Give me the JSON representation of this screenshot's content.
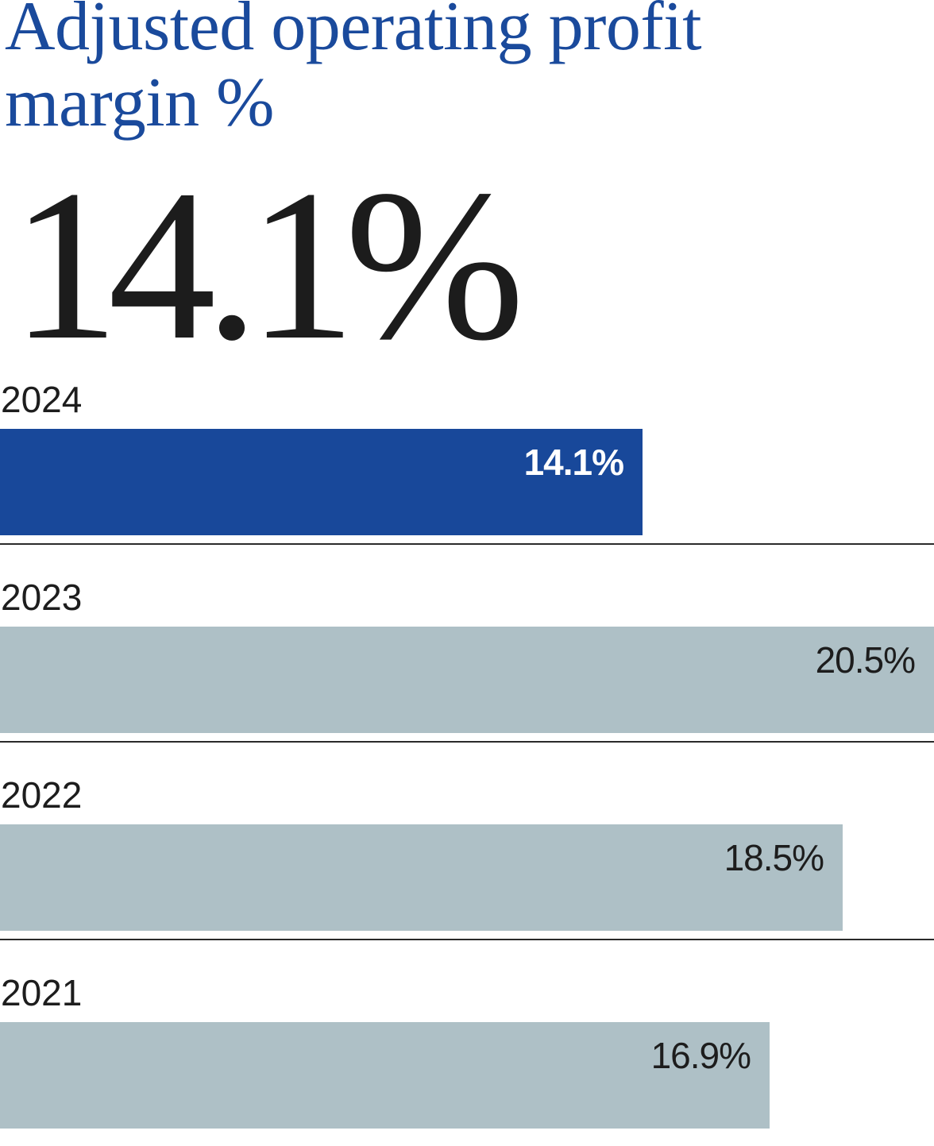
{
  "chart_data": {
    "type": "bar",
    "orientation": "horizontal",
    "title": "Adjusted operating profit margin %",
    "headline_value": "14.1%",
    "categories": [
      "2024",
      "2023",
      "2022",
      "2021"
    ],
    "values": [
      14.1,
      20.5,
      18.5,
      16.9
    ],
    "value_labels": [
      "14.1%",
      "20.5%",
      "18.5%",
      "16.9%"
    ],
    "highlight_category": "2024",
    "xlim": [
      0,
      20.5
    ],
    "grid": false,
    "legend": "none",
    "colors": {
      "title": "#1a4a9c",
      "highlight_bar": "#18489a",
      "bar": "#aec0c6",
      "highlight_label": "#ffffff",
      "label": "#1d1d1d"
    }
  }
}
